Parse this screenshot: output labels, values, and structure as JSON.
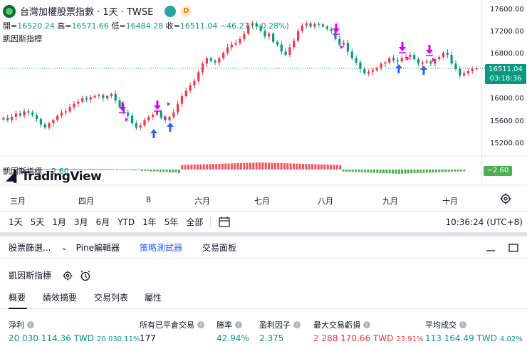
{
  "header": {
    "symbol_title": "台灣加權股票指數 · 1天 · TWSE",
    "badge": "D",
    "ohlc": {
      "open_label": "開=",
      "open": "16520.24",
      "high_label": "高=",
      "high": "16571.66",
      "low_label": "低=",
      "low": "16484.28",
      "close_label": "收=",
      "close": "16511.04",
      "change": "−46.27 (−0.28%)"
    },
    "indicator_name": "凱因斯指標"
  },
  "price_scale": [
    "17600.00",
    "17200.00",
    "16800.00",
    "16000.00",
    "15600.00",
    "15200.00"
  ],
  "last_price": {
    "value": "16511.04",
    "countdown": "03:18:36"
  },
  "oscillator": {
    "label": "凱因斯指標",
    "value": "−2.60",
    "tag": "−2.60"
  },
  "watermark": "TradingView",
  "x_axis": [
    "三月",
    "四月",
    "8",
    "六月",
    "七月",
    "八月",
    "九月",
    "十月"
  ],
  "timeframes": [
    "1天",
    "5天",
    "1月",
    "3月",
    "6月",
    "YTD",
    "1年",
    "5年",
    "全部"
  ],
  "clock": "10:36:24 (UTC+8)",
  "panel_tabs": [
    "股票篩選...",
    "Pine編輯器",
    "策略測試器",
    "交易面板"
  ],
  "active_panel_tab": "策略測試器",
  "strategy": {
    "name": "凱因斯指標"
  },
  "sub_tabs": [
    "概要",
    "績效摘要",
    "交易列表",
    "屬性"
  ],
  "metrics": [
    {
      "label": "淨利",
      "value": "20 030 114.36 TWD",
      "pct": "20 030.11%",
      "tone": "pos"
    },
    {
      "label": "所有已平倉交易",
      "value": "177",
      "pct": "",
      "tone": "neu"
    },
    {
      "label": "勝率",
      "value": "42.94%",
      "pct": "",
      "tone": "pos"
    },
    {
      "label": "盈利因子",
      "value": "2.375",
      "pct": "",
      "tone": "pos"
    },
    {
      "label": "最大交易虧損",
      "value": "2 288 170.66 TWD",
      "pct": "23.91%",
      "tone": "neg"
    },
    {
      "label": "平均成交",
      "value": "113 164.49 TWD",
      "pct": "4.02%",
      "tone": "pos"
    }
  ],
  "colors": {
    "up": "#f23645",
    "down": "#089981",
    "buy_arrow": "#2962ff",
    "sell_arrow": "#d500f9",
    "osc_pos": "#f7525f",
    "osc_neg": "#4caf50",
    "accent": "#2962ff"
  },
  "chart_data": {
    "type": "candlestick",
    "y_ticks": [
      15200,
      15600,
      16000,
      16800,
      17200,
      17600
    ],
    "last_price": 16511.04,
    "closes": [
      15600,
      15560,
      15620,
      15680,
      15640,
      15720,
      15700,
      15650,
      15580,
      15480,
      15420,
      15500,
      15560,
      15640,
      15700,
      15720,
      15800,
      15860,
      15900,
      15960,
      15940,
      15980,
      16000,
      16020,
      15960,
      16000,
      16040,
      15920,
      15800,
      15700,
      15640,
      15500,
      15420,
      15460,
      15560,
      15620,
      15660,
      15720,
      15600,
      15560,
      15620,
      15700,
      15860,
      16000,
      16100,
      16200,
      16280,
      16440,
      16600,
      16700,
      16650,
      16620,
      16700,
      16800,
      16900,
      16950,
      16980,
      17050,
      17150,
      17300,
      17340,
      17280,
      17200,
      17100,
      17150,
      17000,
      16950,
      16820,
      16760,
      16900,
      17020,
      17200,
      17300,
      17340,
      17280,
      17330,
      17320,
      17280,
      17240,
      17200,
      17050,
      16950,
      16980,
      16820,
      16700,
      16620,
      16500,
      16420,
      16450,
      16480,
      16520,
      16600,
      16620,
      16700,
      16660,
      16640,
      16700,
      16720,
      16760,
      16680,
      16600,
      16620,
      16640,
      16600,
      16680,
      16720,
      16800,
      16760,
      16600,
      16500,
      16380,
      16420,
      16460,
      16500,
      16511
    ]
  }
}
